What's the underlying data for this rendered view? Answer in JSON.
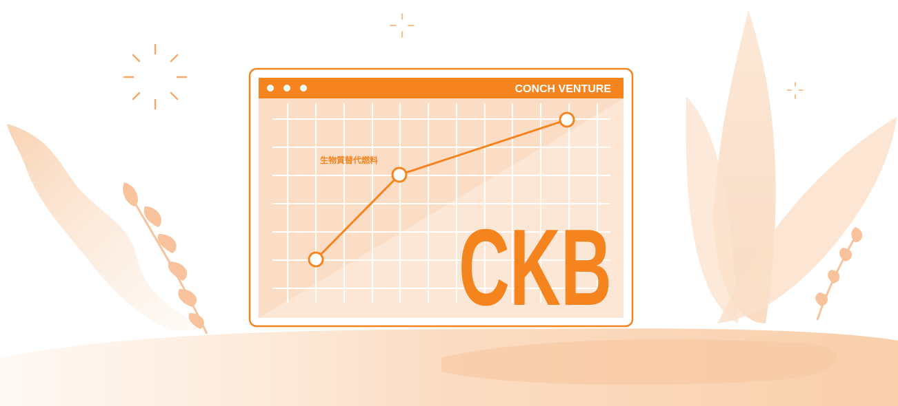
{
  "window": {
    "brand": "CONCH VENTURE"
  },
  "chart": {
    "label": "生物質替代燃料",
    "watermark": "CKB"
  }
}
